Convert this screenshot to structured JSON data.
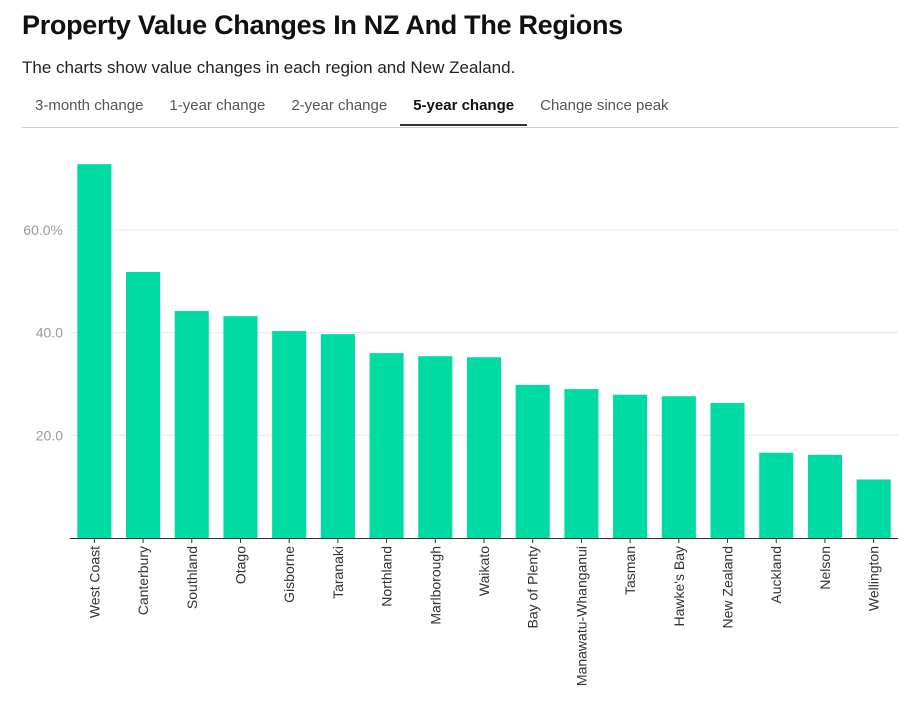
{
  "header": {
    "title": "Property Value Changes In NZ And The Regions",
    "subtitle": "The charts show value changes in each region and New Zealand."
  },
  "tabs": [
    {
      "label": "3-month change",
      "active": false
    },
    {
      "label": "1-year change",
      "active": false
    },
    {
      "label": "2-year change",
      "active": false
    },
    {
      "label": "5-year change",
      "active": true
    },
    {
      "label": "Change since peak",
      "active": false
    }
  ],
  "colors": {
    "bar": "#00DBA3"
  },
  "chart_data": {
    "type": "bar",
    "title": "",
    "xlabel": "",
    "ylabel": "",
    "categories": [
      "West Coast",
      "Canterbury",
      "Southland",
      "Otago",
      "Gisborne",
      "Taranaki",
      "Northland",
      "Marlborough",
      "Waikato",
      "Bay of Plenty",
      "Manawatu-Whanganui",
      "Tasman",
      "Hawke's Bay",
      "New Zealand",
      "Auckland",
      "Nelson",
      "Wellington"
    ],
    "series": [
      {
        "values": [
          72.8,
          51.8,
          44.2,
          43.2,
          40.3,
          39.7,
          36.0,
          35.4,
          35.2,
          29.8,
          29.0,
          27.9,
          27.6,
          26.3,
          16.6,
          16.2,
          11.4
        ]
      }
    ],
    "ylim": [
      0,
      74
    ],
    "yticks": [
      20,
      40,
      60
    ],
    "ytick_labels": [
      "20.0",
      "40.0",
      "60.0%"
    ],
    "grid": true,
    "legend": "none"
  }
}
